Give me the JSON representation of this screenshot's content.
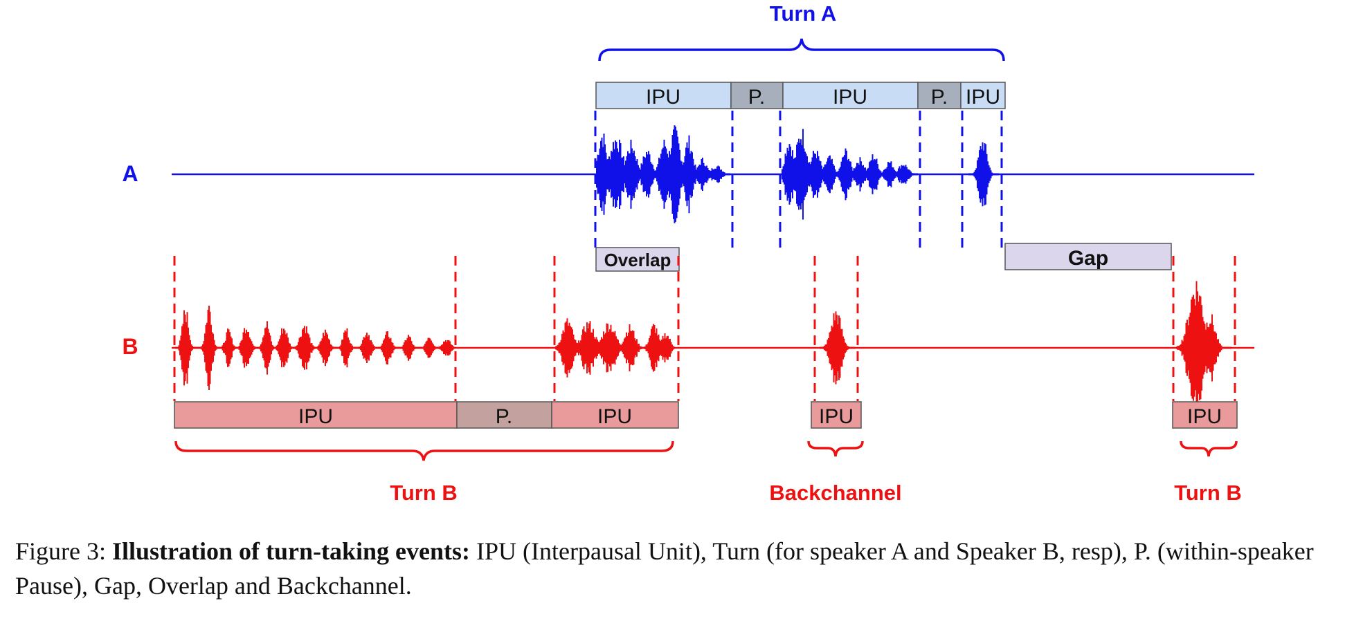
{
  "colors": {
    "speaker_a": "#1010e8",
    "speaker_b": "#ee1111",
    "ipu_a_fill": "#c9dcf5",
    "pause_a_fill": "#a7afbd",
    "ipu_b_fill": "#e99a9a",
    "pause_b_fill": "#c2a19e",
    "overlap_gap_fill": "#dcd6ec",
    "box_stroke": "#555555"
  },
  "labels": {
    "speaker_a": "A",
    "speaker_b": "B",
    "turn_a": "Turn A",
    "turn_b_left": "Turn B",
    "backchannel": "Backchannel",
    "turn_b_right": "Turn B",
    "overlap": "Overlap",
    "gap": "Gap"
  },
  "segments_a": [
    "IPU",
    "P.",
    "IPU",
    "P.",
    "IPU"
  ],
  "segments_b": [
    "IPU",
    "P.",
    "IPU",
    "IPU",
    "IPU"
  ],
  "caption": {
    "prefix": "Figure 3: ",
    "bold": "Illustration of turn-taking events:",
    "rest": " IPU (Interpausal Unit), Turn (for speaker A and Speaker B, resp), P. (within-speaker Pause), Gap, Overlap and Backchannel."
  }
}
